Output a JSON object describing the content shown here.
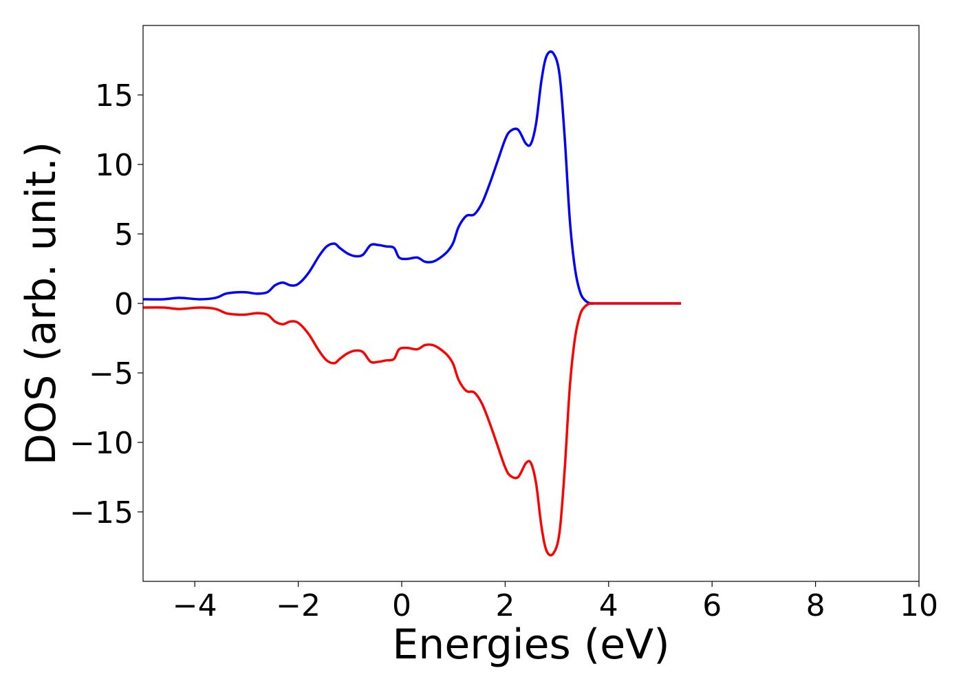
{
  "chart_data": {
    "type": "line",
    "title": "",
    "xlabel": "Energies (eV)",
    "ylabel": "DOS (arb. unit.)",
    "xlim": [
      -5,
      10
    ],
    "ylim": [
      -20,
      20
    ],
    "xticks": [
      -4,
      -2,
      0,
      2,
      4,
      6,
      8,
      10
    ],
    "xtick_labels": [
      "−4",
      "−2",
      "0",
      "2",
      "4",
      "6",
      "8",
      "10"
    ],
    "yticks": [
      15,
      10,
      5,
      0,
      -5,
      -10,
      -15
    ],
    "ytick_labels": [
      "15",
      "10",
      "5",
      "0",
      "−5",
      "−10",
      "−15"
    ],
    "grid": false,
    "legend": "none",
    "series": [
      {
        "color": "#0000ff",
        "x": [
          -5.0,
          -4.6,
          -4.3,
          -3.9,
          -3.6,
          -3.4,
          -3.2,
          -3.0,
          -2.8,
          -2.6,
          -2.45,
          -2.3,
          -2.15,
          -2.0,
          -1.8,
          -1.6,
          -1.45,
          -1.3,
          -1.2,
          -1.05,
          -0.9,
          -0.75,
          -0.6,
          -0.45,
          -0.3,
          -0.15,
          -0.05,
          0.1,
          0.3,
          0.45,
          0.6,
          0.75,
          0.9,
          1.0,
          1.1,
          1.25,
          1.4,
          1.55,
          1.7,
          1.85,
          2.0,
          2.1,
          2.25,
          2.4,
          2.5,
          2.6,
          2.7,
          2.8,
          2.93,
          3.05,
          3.15,
          3.25,
          3.35,
          3.45,
          3.55,
          3.65,
          3.75,
          4.0,
          4.5,
          5.0,
          5.4
        ],
        "y": [
          0.3,
          0.3,
          0.4,
          0.3,
          0.4,
          0.7,
          0.8,
          0.8,
          0.7,
          0.8,
          1.3,
          1.5,
          1.3,
          1.4,
          2.2,
          3.4,
          4.1,
          4.3,
          4.0,
          3.6,
          3.4,
          3.5,
          4.2,
          4.2,
          4.1,
          4.0,
          3.3,
          3.2,
          3.3,
          3.0,
          3.0,
          3.3,
          3.8,
          4.4,
          5.5,
          6.3,
          6.4,
          7.2,
          8.6,
          10.2,
          11.8,
          12.4,
          12.5,
          11.5,
          11.5,
          13.0,
          16.0,
          17.8,
          18.0,
          16.5,
          12.0,
          6.0,
          2.5,
          0.8,
          0.2,
          0.0,
          0.0,
          0.0,
          0.0,
          0.0,
          0.0
        ]
      },
      {
        "color": "#ff0000",
        "x": [
          -5.0,
          -4.6,
          -4.3,
          -3.9,
          -3.6,
          -3.4,
          -3.2,
          -3.0,
          -2.8,
          -2.6,
          -2.45,
          -2.3,
          -2.15,
          -2.0,
          -1.8,
          -1.6,
          -1.45,
          -1.3,
          -1.2,
          -1.05,
          -0.9,
          -0.75,
          -0.6,
          -0.45,
          -0.3,
          -0.15,
          -0.05,
          0.1,
          0.3,
          0.45,
          0.6,
          0.75,
          0.9,
          1.0,
          1.1,
          1.25,
          1.4,
          1.55,
          1.7,
          1.85,
          2.0,
          2.1,
          2.25,
          2.4,
          2.5,
          2.6,
          2.7,
          2.8,
          2.93,
          3.05,
          3.15,
          3.25,
          3.35,
          3.45,
          3.55,
          3.65,
          3.75,
          4.0,
          4.5,
          5.0,
          5.4
        ],
        "y": [
          -0.3,
          -0.3,
          -0.4,
          -0.3,
          -0.4,
          -0.7,
          -0.8,
          -0.8,
          -0.7,
          -0.8,
          -1.3,
          -1.5,
          -1.3,
          -1.4,
          -2.2,
          -3.4,
          -4.1,
          -4.3,
          -4.0,
          -3.6,
          -3.4,
          -3.5,
          -4.2,
          -4.2,
          -4.1,
          -4.0,
          -3.3,
          -3.2,
          -3.3,
          -3.0,
          -3.0,
          -3.3,
          -3.8,
          -4.4,
          -5.5,
          -6.3,
          -6.4,
          -7.2,
          -8.6,
          -10.2,
          -11.8,
          -12.4,
          -12.5,
          -11.5,
          -11.5,
          -13.0,
          -16.0,
          -17.8,
          -18.0,
          -16.5,
          -12.0,
          -6.0,
          -2.5,
          -0.8,
          -0.2,
          0.0,
          0.0,
          0.0,
          0.0,
          0.0,
          0.0
        ]
      }
    ]
  }
}
